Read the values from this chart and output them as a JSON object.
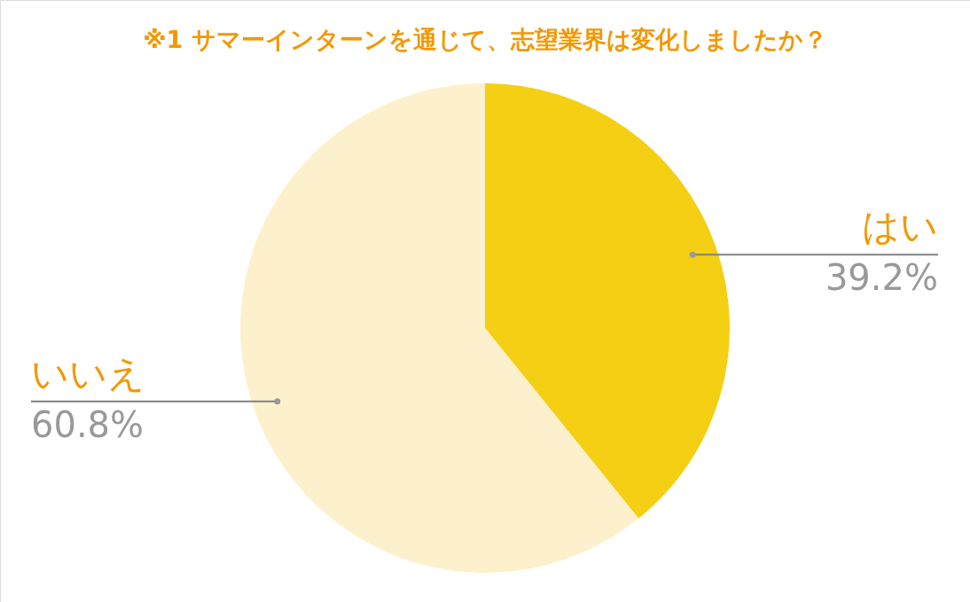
{
  "chart_data": {
    "type": "pie",
    "title": "※1 サマーインターンを通じて、志望業界は変化しましたか？",
    "categories": [
      "はい",
      "いいえ"
    ],
    "values": [
      39.2,
      60.8
    ],
    "colors": [
      "#f4cf14",
      "#fdf0cc"
    ],
    "value_labels": [
      "39.2%",
      "60.8%"
    ]
  }
}
